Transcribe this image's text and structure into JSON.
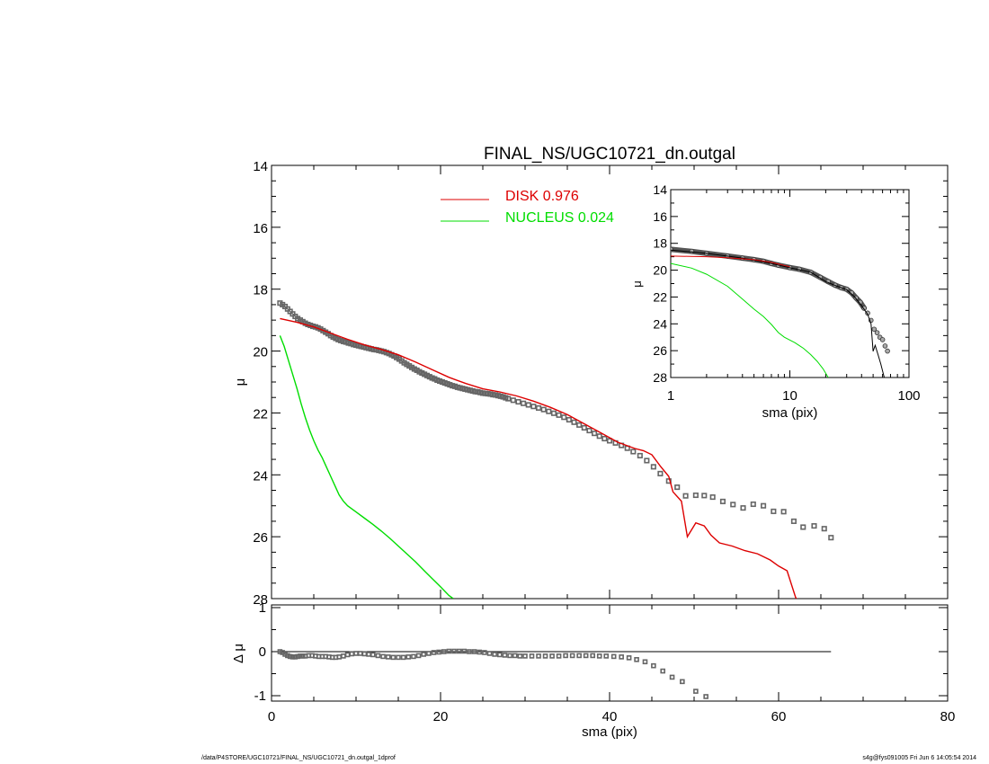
{
  "title": "FINAL_NS/UGC10721_dn.outgal",
  "footer": {
    "left": "/data/P4STORE/UGC10721/FINAL_NS/UGC10721_dn.outgal_1dprof",
    "right": "s4g@fys091005  Fri Jun  6 14:05:54 2014"
  },
  "colors": {
    "disk": "#dd0000",
    "nucleus": "#00dd00",
    "data": "#000000",
    "data_marker": "#666666"
  },
  "legend": [
    {
      "label": "DISK  0.976",
      "color": "#dd0000"
    },
    {
      "label": "NUCLEUS  0.024",
      "color": "#00dd00"
    }
  ],
  "chart_data": [
    {
      "type": "scatter",
      "panel": "main",
      "title": "FINAL_NS/UGC10721_dn.outgal",
      "xlabel": "",
      "ylabel": "μ",
      "xlim": [
        0,
        80
      ],
      "ylim": [
        28,
        14
      ],
      "y_inverted": true,
      "xticks": [
        0,
        20,
        40,
        60,
        80
      ],
      "yticks": [
        14,
        16,
        18,
        20,
        22,
        24,
        26,
        28
      ],
      "legend_position": "top-center",
      "series": [
        {
          "name": "",
          "kind": "markers",
          "x": [
            1.0,
            1.3,
            1.6,
            1.9,
            2.2,
            2.5,
            2.8,
            3.1,
            3.4,
            3.7,
            4.0,
            4.3,
            4.6,
            4.9,
            5.2,
            5.5,
            5.8,
            6.1,
            6.4,
            6.7,
            7.0,
            7.3,
            7.6,
            7.9,
            8.2,
            8.5,
            8.8,
            9.1,
            9.4,
            9.7,
            10.0,
            10.3,
            10.6,
            10.9,
            11.2,
            11.5,
            11.8,
            12.1,
            12.4,
            12.7,
            13.0,
            13.3,
            13.6,
            13.9,
            14.2,
            14.5,
            14.8,
            15.1,
            15.4,
            15.7,
            16.0,
            16.3,
            16.6,
            16.9,
            17.2,
            17.5,
            17.8,
            18.1,
            18.4,
            18.7,
            19.0,
            19.3,
            19.6,
            19.9,
            20.2,
            20.5,
            20.8,
            21.1,
            21.4,
            21.7,
            22.0,
            22.3,
            22.6,
            22.9,
            23.2,
            23.5,
            23.8,
            24.1,
            24.4,
            24.7,
            25.0,
            25.3,
            25.6,
            25.9,
            26.2,
            26.5,
            26.8,
            27.1,
            27.4,
            27.7,
            28.0,
            28.6,
            29.2,
            29.8,
            30.4,
            31.0,
            31.6,
            32.2,
            32.8,
            33.4,
            34.0,
            34.6,
            35.2,
            35.8,
            36.4,
            37.0,
            37.6,
            38.2,
            38.8,
            39.4,
            40.0,
            40.7,
            41.4,
            42.1,
            42.8,
            43.6,
            44.4,
            45.2,
            46.0,
            47.0,
            48.0,
            49.0,
            50.2,
            51.2,
            52.2,
            53.4,
            54.6,
            55.8,
            57.0,
            58.2,
            59.4,
            60.6,
            61.8,
            62.9,
            64.2,
            65.4,
            66.2
          ],
          "y": [
            18.45,
            18.5,
            18.56,
            18.64,
            18.72,
            18.8,
            18.88,
            18.95,
            19.0,
            19.05,
            19.1,
            19.14,
            19.17,
            19.2,
            19.22,
            19.25,
            19.29,
            19.34,
            19.39,
            19.44,
            19.5,
            19.55,
            19.59,
            19.63,
            19.66,
            19.69,
            19.71,
            19.74,
            19.76,
            19.79,
            19.81,
            19.83,
            19.85,
            19.87,
            19.89,
            19.91,
            19.93,
            19.95,
            19.96,
            19.98,
            20.0,
            20.02,
            20.05,
            20.08,
            20.12,
            20.16,
            20.21,
            20.26,
            20.32,
            20.38,
            20.43,
            20.48,
            20.53,
            20.58,
            20.62,
            20.67,
            20.71,
            20.75,
            20.79,
            20.83,
            20.87,
            20.9,
            20.94,
            20.97,
            21.0,
            21.03,
            21.06,
            21.09,
            21.12,
            21.14,
            21.17,
            21.19,
            21.21,
            21.23,
            21.25,
            21.27,
            21.29,
            21.31,
            21.32,
            21.34,
            21.36,
            21.37,
            21.38,
            21.39,
            21.41,
            21.42,
            21.44,
            21.46,
            21.48,
            21.51,
            21.54,
            21.59,
            21.64,
            21.69,
            21.74,
            21.79,
            21.84,
            21.89,
            21.95,
            22.01,
            22.07,
            22.14,
            22.22,
            22.3,
            22.39,
            22.48,
            22.57,
            22.66,
            22.75,
            22.83,
            22.9,
            22.97,
            23.05,
            23.14,
            23.25,
            23.38,
            23.54,
            23.74,
            23.96,
            24.2,
            24.4,
            24.68,
            24.66,
            24.67,
            24.72,
            24.86,
            24.96,
            25.07,
            24.95,
            25.0,
            25.18,
            25.19,
            25.5,
            25.69,
            25.65,
            25.74,
            26.03
          ]
        },
        {
          "name": "DISK  0.976",
          "kind": "line",
          "color": "#dd0000",
          "x": [
            1.0,
            3.0,
            5.0,
            7.0,
            9.0,
            11.0,
            13.0,
            15.0,
            17.0,
            19.0,
            21.0,
            23.0,
            25.0,
            27.0,
            29.0,
            31.0,
            33.0,
            35.0,
            37.0,
            39.0,
            41.0,
            43.0,
            44.0,
            45.0,
            46.0,
            47.0,
            47.5,
            48.5,
            49.2,
            50.2,
            51.2,
            52.0,
            53.0,
            54.5,
            56.0,
            57.5,
            59.0,
            60.0,
            61.0,
            62.0,
            62.3
          ],
          "y": [
            18.95,
            19.07,
            19.22,
            19.42,
            19.62,
            19.8,
            19.95,
            20.12,
            20.35,
            20.6,
            20.85,
            21.05,
            21.22,
            21.32,
            21.45,
            21.62,
            21.82,
            22.05,
            22.35,
            22.65,
            22.95,
            23.15,
            23.22,
            23.35,
            23.72,
            24.05,
            24.55,
            24.85,
            26.0,
            25.55,
            25.65,
            25.95,
            26.2,
            26.3,
            26.45,
            26.55,
            26.75,
            26.95,
            27.1,
            27.95,
            28.1
          ]
        },
        {
          "name": "NUCLEUS  0.024",
          "kind": "line",
          "color": "#00dd00",
          "x": [
            1.0,
            1.5,
            2.0,
            2.5,
            3.0,
            3.5,
            4.0,
            4.5,
            5.0,
            5.5,
            6.0,
            6.5,
            7.0,
            7.5,
            8.0,
            8.5,
            9.0,
            10.0,
            11.0,
            12.0,
            13.0,
            14.0,
            15.0,
            16.0,
            17.0,
            18.0,
            19.0,
            20.0,
            21.0,
            21.5
          ],
          "y": [
            19.5,
            19.85,
            20.3,
            20.75,
            21.2,
            21.7,
            22.15,
            22.55,
            22.9,
            23.2,
            23.45,
            23.75,
            24.05,
            24.35,
            24.65,
            24.85,
            25.0,
            25.2,
            25.4,
            25.6,
            25.82,
            26.05,
            26.3,
            26.55,
            26.8,
            27.08,
            27.35,
            27.62,
            27.9,
            28.0
          ]
        }
      ]
    },
    {
      "type": "scatter",
      "panel": "inset",
      "xlabel": "sma (pix)",
      "ylabel": "μ",
      "x_scale": "log",
      "xlim": [
        1,
        100
      ],
      "ylim": [
        28,
        14
      ],
      "y_inverted": true,
      "xticks": [
        1,
        10,
        100
      ],
      "yticks": [
        14,
        16,
        18,
        20,
        22,
        24,
        26,
        28
      ],
      "series": [
        {
          "name": "",
          "kind": "markers",
          "x": [
            1.0,
            1.5,
            2.0,
            3.0,
            4.0,
            5.0,
            6.0,
            7.0,
            8.0,
            10.0,
            12.0,
            15.0,
            18.0,
            21.0,
            24.0,
            27.0,
            30.0,
            33.0,
            36.0,
            39.0,
            42.0,
            45.0,
            48.0,
            51.0,
            54.0,
            57.0,
            60.0,
            63.0,
            66.0
          ],
          "y": [
            18.45,
            18.6,
            18.75,
            18.95,
            19.1,
            19.22,
            19.34,
            19.5,
            19.63,
            19.81,
            19.93,
            20.16,
            20.53,
            20.85,
            21.12,
            21.3,
            21.42,
            21.69,
            22.07,
            22.39,
            22.83,
            23.2,
            23.74,
            24.4,
            24.66,
            25.0,
            25.18,
            25.65,
            26.03
          ]
        },
        {
          "name": "",
          "kind": "line",
          "color": "#000000",
          "x": [
            1.0,
            2.0,
            4.0,
            7.0,
            10.0,
            15.0,
            20.0,
            25.0,
            30.0,
            35.0,
            40.0,
            45.0,
            48.0,
            50.0,
            52.0,
            55.0,
            58.0,
            62.0
          ],
          "y": [
            18.5,
            18.75,
            19.1,
            19.5,
            19.82,
            20.15,
            20.85,
            21.2,
            21.45,
            22.0,
            22.65,
            23.3,
            24.0,
            26.05,
            25.6,
            26.3,
            27.0,
            28.0
          ]
        },
        {
          "name": "DISK  0.976",
          "kind": "line",
          "color": "#dd0000",
          "x": [
            1.0,
            2.0,
            3.0,
            5.0,
            7.0,
            10.0
          ],
          "y": [
            18.95,
            19.0,
            19.07,
            19.22,
            19.42,
            19.75
          ]
        },
        {
          "name": "NUCLEUS  0.024",
          "kind": "line",
          "color": "#00dd00",
          "x": [
            1.0,
            1.5,
            2.0,
            3.0,
            4.0,
            5.0,
            6.0,
            7.0,
            8.0,
            9.0,
            11.0,
            13.0,
            15.0,
            17.0,
            19.0,
            21.0
          ],
          "y": [
            19.5,
            19.85,
            20.3,
            21.2,
            22.15,
            22.9,
            23.45,
            24.05,
            24.65,
            25.0,
            25.4,
            25.82,
            26.3,
            26.8,
            27.35,
            28.0
          ]
        }
      ]
    },
    {
      "type": "scatter",
      "panel": "residual",
      "xlabel": "sma (pix)",
      "ylabel": "Δ μ",
      "xlim": [
        0,
        80
      ],
      "ylim": [
        -1.1,
        1.1
      ],
      "xticks": [
        0,
        20,
        40,
        60,
        80
      ],
      "yticks": [
        -1,
        0,
        1
      ],
      "zero_line": {
        "x": [
          0.8,
          66.2
        ],
        "y": 0
      },
      "series": [
        {
          "name": "",
          "kind": "markers",
          "x": [
            1.0,
            1.3,
            1.6,
            1.9,
            2.2,
            2.5,
            2.8,
            3.1,
            3.4,
            3.7,
            4.0,
            4.4,
            4.8,
            5.2,
            5.6,
            6.0,
            6.4,
            6.8,
            7.2,
            7.6,
            8.0,
            8.5,
            9.0,
            9.5,
            10.0,
            10.5,
            11.0,
            11.5,
            12.0,
            12.6,
            13.2,
            13.8,
            14.4,
            15.0,
            15.6,
            16.2,
            16.8,
            17.4,
            18.0,
            18.6,
            19.2,
            19.8,
            20.4,
            21.0,
            21.6,
            22.2,
            22.8,
            23.4,
            24.0,
            24.6,
            25.2,
            25.8,
            26.4,
            27.0,
            27.6,
            28.2,
            28.8,
            29.4,
            30.0,
            30.8,
            31.6,
            32.4,
            33.2,
            34.0,
            34.8,
            35.6,
            36.4,
            37.2,
            38.0,
            38.8,
            39.6,
            40.5,
            41.4,
            42.3,
            43.2,
            44.2,
            45.2,
            46.3,
            47.4,
            48.6,
            50.2,
            51.4
          ],
          "y": [
            0.0,
            -0.02,
            -0.06,
            -0.09,
            -0.11,
            -0.12,
            -0.12,
            -0.11,
            -0.1,
            -0.1,
            -0.1,
            -0.09,
            -0.09,
            -0.1,
            -0.11,
            -0.11,
            -0.11,
            -0.12,
            -0.13,
            -0.13,
            -0.12,
            -0.1,
            -0.07,
            -0.05,
            -0.04,
            -0.04,
            -0.05,
            -0.06,
            -0.07,
            -0.09,
            -0.11,
            -0.12,
            -0.13,
            -0.13,
            -0.13,
            -0.12,
            -0.11,
            -0.09,
            -0.06,
            -0.04,
            -0.02,
            -0.01,
            0.0,
            0.01,
            0.01,
            0.01,
            0.01,
            0.0,
            0.0,
            -0.01,
            -0.02,
            -0.04,
            -0.06,
            -0.07,
            -0.08,
            -0.09,
            -0.09,
            -0.1,
            -0.1,
            -0.1,
            -0.1,
            -0.1,
            -0.1,
            -0.1,
            -0.09,
            -0.09,
            -0.09,
            -0.09,
            -0.09,
            -0.1,
            -0.1,
            -0.11,
            -0.12,
            -0.14,
            -0.18,
            -0.23,
            -0.32,
            -0.44,
            -0.58,
            -0.68,
            -0.9,
            -1.02
          ]
        }
      ]
    }
  ]
}
